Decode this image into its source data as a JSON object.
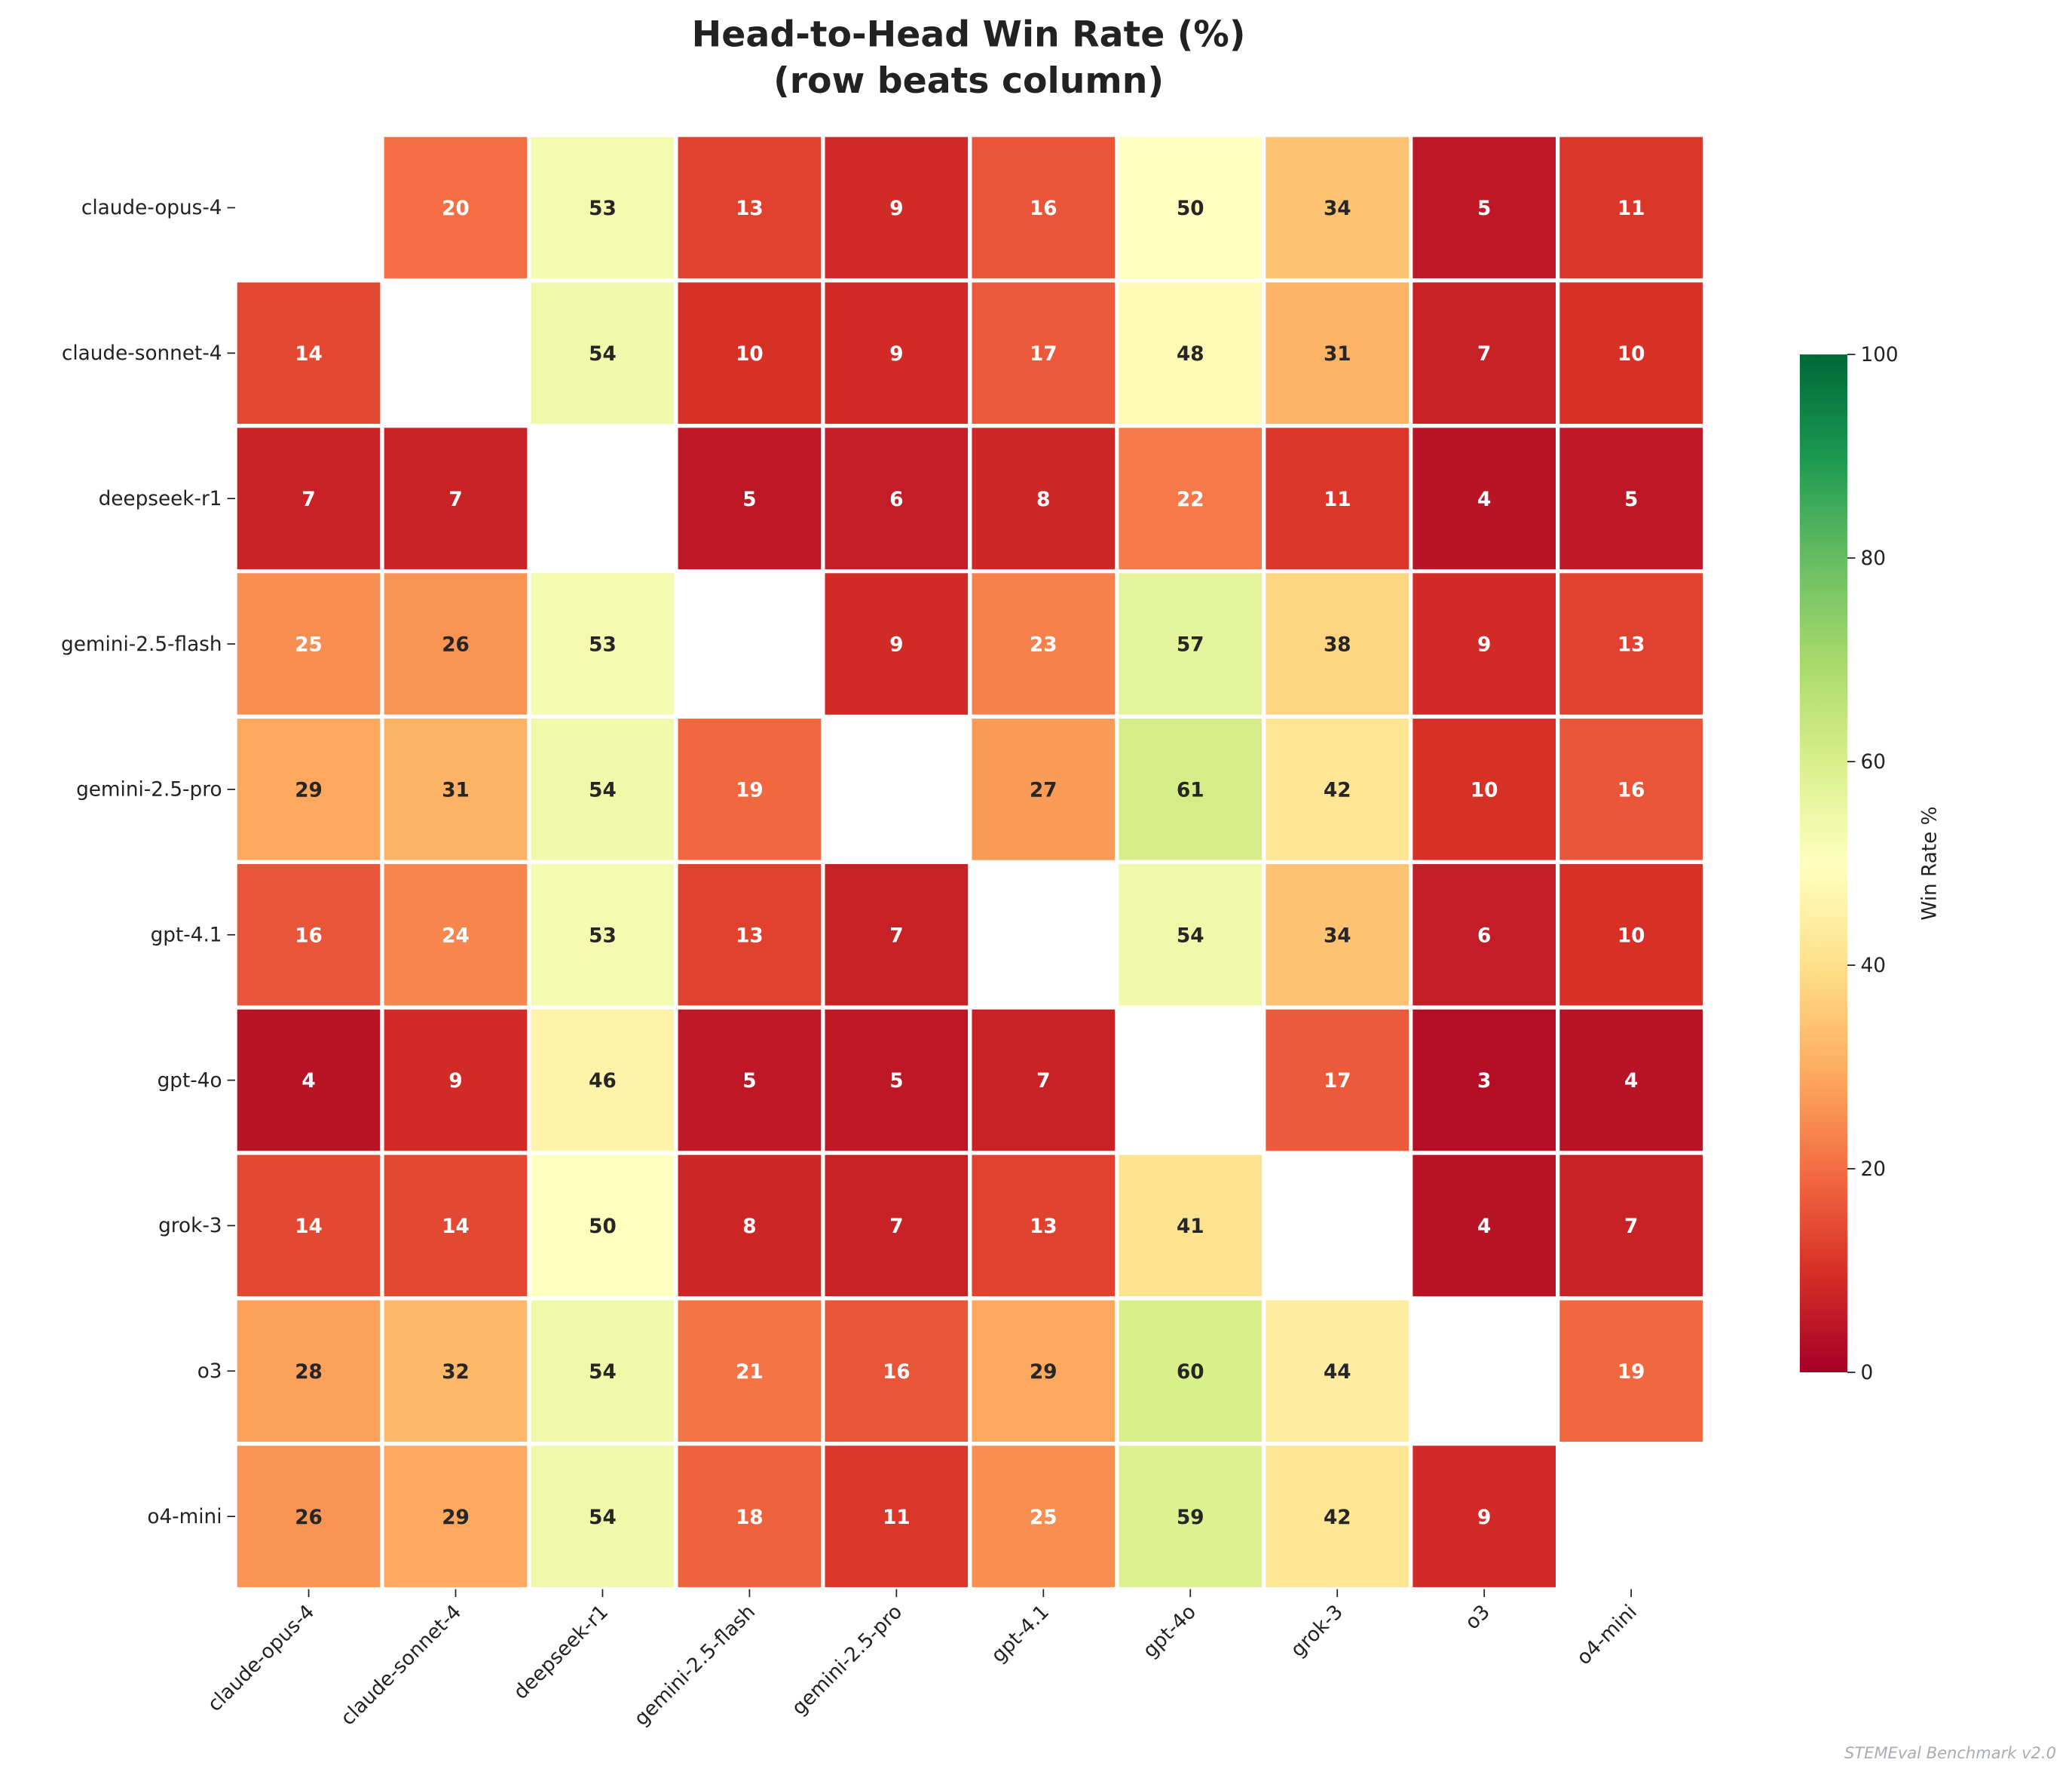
{
  "chart_data": {
    "type": "heatmap",
    "title": "Head-to-Head Win Rate (%)",
    "subtitle": "(row beats column)",
    "rows": [
      "claude-opus-4",
      "claude-sonnet-4",
      "deepseek-r1",
      "gemini-2.5-flash",
      "gemini-2.5-pro",
      "gpt-4.1",
      "gpt-4o",
      "grok-3",
      "o3",
      "o4-mini"
    ],
    "columns": [
      "claude-opus-4",
      "claude-sonnet-4",
      "deepseek-r1",
      "gemini-2.5-flash",
      "gemini-2.5-pro",
      "gpt-4.1",
      "gpt-4o",
      "grok-3",
      "o3",
      "o4-mini"
    ],
    "values": [
      [
        null,
        20,
        53,
        13,
        9,
        16,
        50,
        34,
        5,
        11
      ],
      [
        14,
        null,
        54,
        10,
        9,
        17,
        48,
        31,
        7,
        10
      ],
      [
        7,
        7,
        null,
        5,
        6,
        8,
        22,
        11,
        4,
        5
      ],
      [
        25,
        26,
        53,
        null,
        9,
        23,
        57,
        38,
        9,
        13
      ],
      [
        29,
        31,
        54,
        19,
        null,
        27,
        61,
        42,
        10,
        16
      ],
      [
        16,
        24,
        53,
        13,
        7,
        null,
        54,
        34,
        6,
        10
      ],
      [
        4,
        9,
        46,
        5,
        5,
        7,
        null,
        17,
        3,
        4
      ],
      [
        14,
        14,
        50,
        8,
        7,
        13,
        41,
        null,
        4,
        7
      ],
      [
        28,
        32,
        54,
        21,
        16,
        29,
        60,
        44,
        null,
        19
      ],
      [
        26,
        29,
        54,
        18,
        11,
        25,
        59,
        42,
        9,
        null
      ]
    ],
    "colormap": "RdYlGn",
    "vmin": 0,
    "vmax": 100,
    "colorbar": {
      "label": "Win Rate %",
      "ticks": [
        0,
        20,
        40,
        60,
        80,
        100
      ]
    },
    "annotations": true,
    "footer": "STEMEval Benchmark v2.0"
  }
}
